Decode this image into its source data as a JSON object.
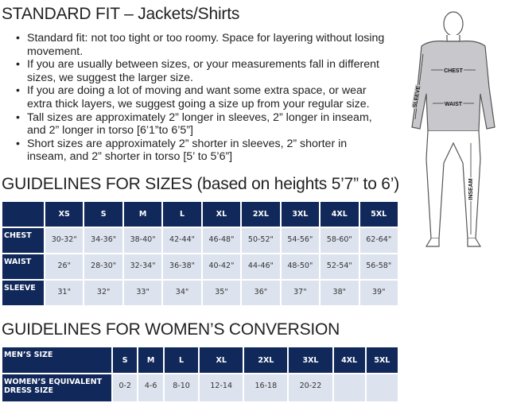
{
  "title": "STANDARD FIT – Jackets/Shirts",
  "bullets": [
    "Standard fit: not too tight or too roomy. Space for layering without losing movement.",
    "If you are usually between sizes, or your measurements fall in different sizes, we suggest the larger size.",
    "If you are doing a lot of moving and want some extra space, or wear extra thick layers, we suggest going a size up from your regular size.",
    "Tall sizes are approximately 2” longer in sleeves, 2” longer in inseam, and 2” longer in torso [6’1”to 6’5”]",
    "Short sizes are approximately 2” shorter in sleeves, 2” shorter in inseam, and 2” shorter in torso [5’ to 5’6”]"
  ],
  "sizes_title": "GUIDELINES FOR SIZES (based on heights 5’7” to 6’)",
  "sizes_table": {
    "headers": [
      "",
      "XS",
      "S",
      "M",
      "L",
      "XL",
      "2XL",
      "3XL",
      "4XL",
      "5XL"
    ],
    "rows": [
      {
        "label": "CHEST",
        "values": [
          "30-32\"",
          "34-36\"",
          "38-40\"",
          "42-44\"",
          "46-48\"",
          "50-52\"",
          "54-56\"",
          "58-60\"",
          "62-64\""
        ]
      },
      {
        "label": "WAIST",
        "values": [
          "26\"",
          "28-30\"",
          "32-34\"",
          "36-38\"",
          "40-42\"",
          "44-46\"",
          "48-50\"",
          "52-54\"",
          "56-58\""
        ]
      },
      {
        "label": "SLEEVE",
        "values": [
          "31\"",
          "32\"",
          "33\"",
          "34\"",
          "35\"",
          "36\"",
          "37\"",
          "38\"",
          "39\""
        ]
      }
    ]
  },
  "women_title": "GUIDELINES FOR WOMEN’S CONVERSION",
  "women_table": {
    "headers": [
      "MEN’S SIZE",
      "S",
      "M",
      "L",
      "XL",
      "2XL",
      "3XL",
      "4XL",
      "5XL"
    ],
    "row": {
      "label": "WOMEN’S EQUIVALENT DRESS SIZE",
      "values": [
        "0-2",
        "4-6",
        "8-10",
        "12-14",
        "16-18",
        "20-22",
        "",
        ""
      ]
    }
  },
  "figure": {
    "labels": {
      "chest": "CHEST",
      "sleeve": "SLEEVE",
      "waist": "WAIST",
      "inseam": "INSEAM"
    }
  },
  "colors": {
    "header": "#11285a",
    "cell": "#dde3ee"
  }
}
